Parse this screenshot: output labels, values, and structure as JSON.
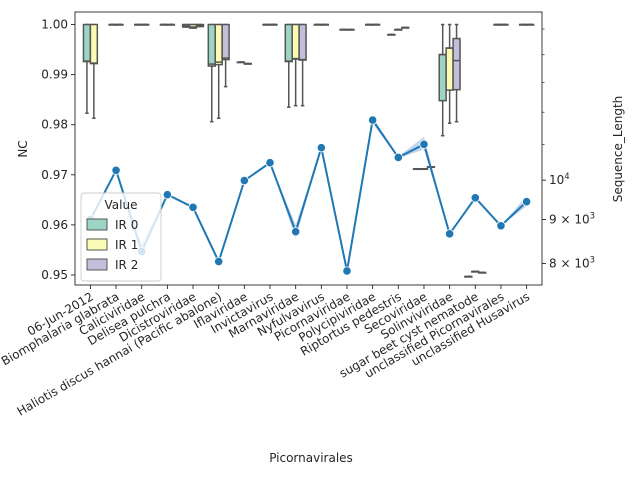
{
  "chart_data": {
    "type": "box+line",
    "xlabel": "Picornavirales",
    "ylabel": "NC",
    "y2label": "Sequence_Length",
    "ylim": [
      0.948,
      1.0025
    ],
    "y2_scale": "log",
    "y2lim": [
      7550,
      15700
    ],
    "yticks": [
      0.95,
      0.96,
      0.97,
      0.98,
      0.99,
      1.0
    ],
    "ytick_labels": [
      "0.95",
      "0.96",
      "0.97",
      "0.98",
      "0.99",
      "1.00"
    ],
    "y2ticks": [
      {
        "value": 8000,
        "label": "8 × 10^3"
      },
      {
        "value": 9000,
        "label": "9 × 10^3"
      },
      {
        "value": 10000,
        "label": "10^4"
      }
    ],
    "categories": [
      "06-Jun-2012",
      "Biomphalaria glabrata",
      "Caliciviridae",
      "Delisea pulchra",
      "Dicistroviridae",
      "Haliotis discus hannai (Pacific abalone)",
      "Iflaviridae",
      "Invictavirus",
      "Marnaviridae",
      "Nyfulvavirus",
      "Picornaviridae",
      "Polycipiviridae",
      "Riptortus pedestris",
      "Secoviridae",
      "Solinviviridae",
      "sugar beet cyst nematode",
      "unclassified Picornavirales",
      "unclassified Husavirus"
    ],
    "legend": {
      "title": "Value",
      "position": "lower-left",
      "entries": [
        "IR 0",
        "IR 1",
        "IR 2"
      ]
    },
    "colors": {
      "IR 0": "#9cd4c6",
      "IR 1": "#fbfbb6",
      "IR 2": "#c2bfdb",
      "line": "#1f77b4",
      "band": "#aec7e8"
    },
    "boxes": [
      {
        "category": 0,
        "group": 0,
        "q1": 0.9926,
        "median": 0.9927,
        "q3": 1.0,
        "whislo": 0.9823,
        "whishi": 1.0
      },
      {
        "category": 0,
        "group": 1,
        "q1": 0.9922,
        "median": 0.9923,
        "q3": 1.0,
        "whislo": 0.9813,
        "whishi": 1.0
      },
      {
        "category": 1,
        "group": 0,
        "q1": 1.0,
        "median": 1.0,
        "q3": 1.0,
        "whislo": 1.0,
        "whishi": 1.0
      },
      {
        "category": 1,
        "group": 1,
        "q1": 1.0,
        "median": 1.0,
        "q3": 1.0,
        "whislo": 1.0,
        "whishi": 1.0
      },
      {
        "category": 2,
        "group": 0,
        "q1": 1.0,
        "median": 1.0,
        "q3": 1.0,
        "whislo": 1.0,
        "whishi": 1.0
      },
      {
        "category": 2,
        "group": 1,
        "q1": 1.0,
        "median": 1.0,
        "q3": 1.0,
        "whislo": 1.0,
        "whishi": 1.0
      },
      {
        "category": 3,
        "group": 0,
        "q1": 1.0,
        "median": 1.0,
        "q3": 1.0,
        "whislo": 1.0,
        "whishi": 1.0
      },
      {
        "category": 3,
        "group": 1,
        "q1": 1.0,
        "median": 1.0,
        "q3": 1.0,
        "whislo": 1.0,
        "whishi": 1.0
      },
      {
        "category": 4,
        "group": 0,
        "q1": 0.9995,
        "median": 0.9997,
        "q3": 1.0,
        "whislo": 0.9995,
        "whishi": 1.0
      },
      {
        "category": 4,
        "group": 1,
        "q1": 0.9993,
        "median": 0.9995,
        "q3": 1.0,
        "whislo": 0.9993,
        "whishi": 1.0
      },
      {
        "category": 4,
        "group": 2,
        "q1": 0.9996,
        "median": 0.9998,
        "q3": 1.0,
        "whislo": 0.9996,
        "whishi": 1.0
      },
      {
        "category": 5,
        "group": 0,
        "q1": 0.9917,
        "median": 0.9921,
        "q3": 1.0,
        "whislo": 0.9806,
        "whishi": 1.0
      },
      {
        "category": 5,
        "group": 1,
        "q1": 0.992,
        "median": 0.9925,
        "q3": 1.0,
        "whislo": 0.9813,
        "whishi": 1.0
      },
      {
        "category": 5,
        "group": 2,
        "q1": 0.993,
        "median": 0.9933,
        "q3": 1.0,
        "whislo": 0.9876,
        "whishi": 1.0
      },
      {
        "category": 6,
        "group": 0,
        "q1": 0.9925,
        "median": 0.9925,
        "q3": 0.9925,
        "whislo": 0.9925,
        "whishi": 0.9925
      },
      {
        "category": 6,
        "group": 1,
        "q1": 0.9922,
        "median": 0.9922,
        "q3": 0.9922,
        "whislo": 0.9922,
        "whishi": 0.9922
      },
      {
        "category": 7,
        "group": 0,
        "q1": 1.0,
        "median": 1.0,
        "q3": 1.0,
        "whislo": 1.0,
        "whishi": 1.0
      },
      {
        "category": 7,
        "group": 1,
        "q1": 1.0,
        "median": 1.0,
        "q3": 1.0,
        "whislo": 1.0,
        "whishi": 1.0
      },
      {
        "category": 8,
        "group": 0,
        "q1": 0.9926,
        "median": 0.9927,
        "q3": 1.0,
        "whislo": 0.9835,
        "whishi": 1.0
      },
      {
        "category": 8,
        "group": 1,
        "q1": 0.9931,
        "median": 0.9932,
        "q3": 1.0,
        "whislo": 0.9838,
        "whishi": 1.0
      },
      {
        "category": 8,
        "group": 2,
        "q1": 0.9929,
        "median": 0.993,
        "q3": 1.0,
        "whislo": 0.9838,
        "whishi": 1.0
      },
      {
        "category": 9,
        "group": 0,
        "q1": 1.0,
        "median": 1.0,
        "q3": 1.0,
        "whislo": 1.0,
        "whishi": 1.0
      },
      {
        "category": 9,
        "group": 1,
        "q1": 1.0,
        "median": 1.0,
        "q3": 1.0,
        "whislo": 1.0,
        "whishi": 1.0
      },
      {
        "category": 10,
        "group": 0,
        "q1": 0.999,
        "median": 0.999,
        "q3": 0.999,
        "whislo": 0.999,
        "whishi": 0.999
      },
      {
        "category": 10,
        "group": 1,
        "q1": 0.999,
        "median": 0.999,
        "q3": 0.999,
        "whislo": 0.999,
        "whishi": 0.999
      },
      {
        "category": 11,
        "group": 0,
        "q1": 1.0,
        "median": 1.0,
        "q3": 1.0,
        "whislo": 1.0,
        "whishi": 1.0
      },
      {
        "category": 11,
        "group": 1,
        "q1": 1.0,
        "median": 1.0,
        "q3": 1.0,
        "whislo": 1.0,
        "whishi": 1.0
      },
      {
        "category": 12,
        "group": 0,
        "q1": 0.998,
        "median": 0.998,
        "q3": 0.998,
        "whislo": 0.998,
        "whishi": 0.998
      },
      {
        "category": 12,
        "group": 1,
        "q1": 0.999,
        "median": 0.999,
        "q3": 0.999,
        "whislo": 0.999,
        "whishi": 0.999
      },
      {
        "category": 12,
        "group": 2,
        "q1": 0.9994,
        "median": 0.9994,
        "q3": 0.9994,
        "whislo": 0.9994,
        "whishi": 0.9994
      },
      {
        "category": 13,
        "group": 0,
        "q1": 0.9712,
        "median": 0.9712,
        "q3": 0.9712,
        "whislo": 0.9712,
        "whishi": 0.9712
      },
      {
        "category": 13,
        "group": 1,
        "q1": 0.9712,
        "median": 0.9712,
        "q3": 0.9712,
        "whislo": 0.9712,
        "whishi": 0.9712
      },
      {
        "category": 13,
        "group": 2,
        "q1": 0.9716,
        "median": 0.9716,
        "q3": 0.9716,
        "whislo": 0.9716,
        "whishi": 0.9716
      },
      {
        "category": 14,
        "group": 0,
        "q1": 0.9848,
        "median": 0.994,
        "q3": 0.994,
        "whislo": 0.9778,
        "whishi": 1.0
      },
      {
        "category": 14,
        "group": 1,
        "q1": 0.9869,
        "median": 0.9953,
        "q3": 0.9953,
        "whislo": 0.9803,
        "whishi": 1.0
      },
      {
        "category": 14,
        "group": 2,
        "q1": 0.987,
        "median": 0.9928,
        "q3": 0.9972,
        "whislo": 0.9806,
        "whishi": 1.0
      },
      {
        "category": 15,
        "group": 0,
        "q1": 0.9497,
        "median": 0.9497,
        "q3": 0.9497,
        "whislo": 0.9497,
        "whishi": 0.9497
      },
      {
        "category": 15,
        "group": 1,
        "q1": 0.9507,
        "median": 0.9507,
        "q3": 0.9507,
        "whislo": 0.9507,
        "whishi": 0.9507
      },
      {
        "category": 15,
        "group": 2,
        "q1": 0.9505,
        "median": 0.9505,
        "q3": 0.9505,
        "whislo": 0.9505,
        "whishi": 0.9505
      },
      {
        "category": 16,
        "group": 0,
        "q1": 1.0,
        "median": 1.0,
        "q3": 1.0,
        "whislo": 1.0,
        "whishi": 1.0
      },
      {
        "category": 16,
        "group": 1,
        "q1": 1.0,
        "median": 1.0,
        "q3": 1.0,
        "whislo": 1.0,
        "whishi": 1.0
      },
      {
        "category": 17,
        "group": 0,
        "q1": 1.0,
        "median": 1.0,
        "q3": 1.0,
        "whislo": 1.0,
        "whishi": 1.0
      },
      {
        "category": 17,
        "group": 1,
        "q1": 1.0,
        "median": 1.0,
        "q3": 1.0,
        "whislo": 1.0,
        "whishi": 1.0
      }
    ],
    "line": {
      "name": "Sequence_Length",
      "values": [
        9000,
        10270,
        8260,
        9620,
        9300,
        8040,
        9990,
        10480,
        8710,
        10910,
        7840,
        11750,
        10630,
        11010,
        8660,
        9540,
        8850,
        9440
      ],
      "lower": [
        9000,
        10270,
        8210,
        9620,
        9280,
        8040,
        9990,
        10480,
        8560,
        10910,
        7840,
        11650,
        10600,
        10860,
        8660,
        9540,
        8850,
        9330
      ],
      "upper": [
        9000,
        10270,
        8420,
        9620,
        9330,
        8040,
        9990,
        10480,
        8870,
        10910,
        7840,
        11850,
        10660,
        11230,
        8660,
        9540,
        8850,
        9590
      ]
    }
  }
}
